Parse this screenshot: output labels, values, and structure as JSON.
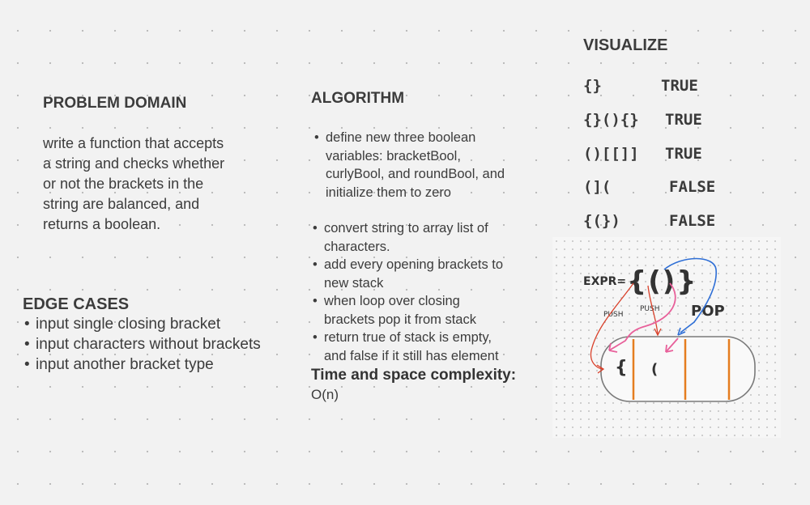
{
  "problem_domain": {
    "title": "PROBLEM DOMAIN",
    "lines": [
      "write a function that accepts",
      "a string and checks whether",
      "or not the brackets in the",
      "string are balanced, and",
      "returns a boolean."
    ]
  },
  "edge_cases": {
    "title": "EDGE CASES",
    "items": [
      "input single closing bracket",
      "input characters without brackets",
      "input another bracket type"
    ]
  },
  "algorithm": {
    "title": "ALGORITHM",
    "first_item_lines": [
      "define new three boolean",
      "variables: bracketBool,",
      "curlyBool, and roundBool, and",
      "initialize them to zero"
    ],
    "items": [
      [
        "convert string to array list of",
        "characters."
      ],
      [
        "add every opening brackets to",
        "new stack"
      ],
      [
        "when loop over closing",
        "brackets pop it from stack"
      ],
      [
        "return true of stack is empty,",
        "and false if it still has element"
      ]
    ],
    "complexity_title": "Time and space complexity:",
    "complexity_value": "O(n)"
  },
  "visualize": {
    "title": "VISUALIZE",
    "rows": [
      {
        "expr": "{}",
        "result": "TRUE"
      },
      {
        "expr": "{}(){}",
        "result": "TRUE"
      },
      {
        "expr": "()[[]]",
        "result": "TRUE"
      },
      {
        "expr": "(](",
        "result": "FALSE"
      },
      {
        "expr": "{(})",
        "result": "FALSE"
      }
    ],
    "sketch": {
      "expr_label": "EXPR=",
      "expr_value": "{()}",
      "push_label_1": "PUSH",
      "push_label_2": "PUSH",
      "pop_label": "POP",
      "stack_item_1": "{",
      "stack_item_2": "(",
      "colors": {
        "red": "#d9412b",
        "pink": "#e8609a",
        "blue": "#2f6fd6",
        "orange": "#e57d1f"
      }
    }
  }
}
